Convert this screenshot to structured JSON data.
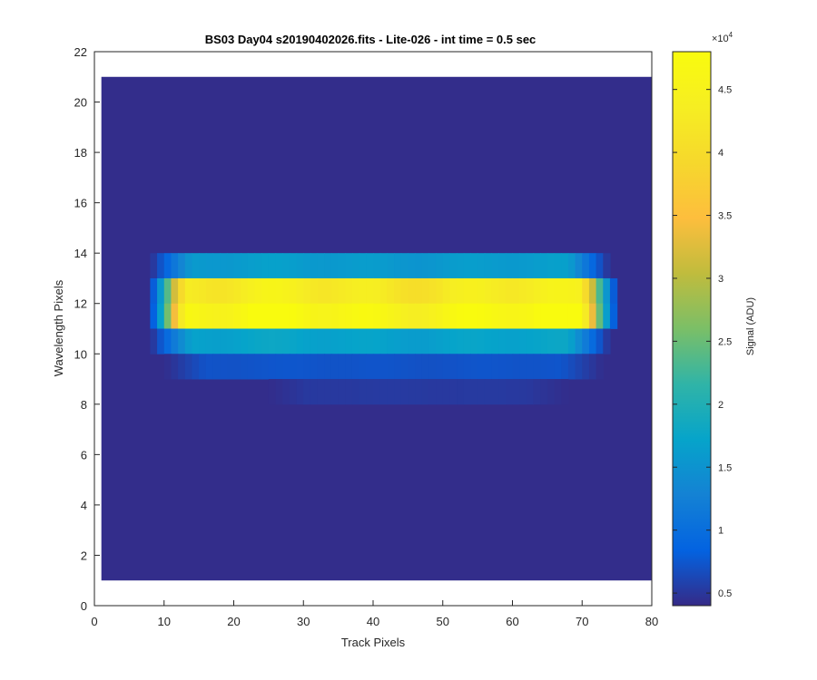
{
  "chart_data": {
    "type": "heatmap",
    "title": "BS03 Day04  s20190402026.fits - Lite-026 - int time = 0.5 sec",
    "xlabel": "Track Pixels",
    "ylabel": "Wavelength Pixels",
    "xlim": [
      0,
      80
    ],
    "ylim": [
      0,
      22
    ],
    "xticks": [
      0,
      10,
      20,
      30,
      40,
      50,
      60,
      70,
      80
    ],
    "yticks": [
      0,
      2,
      4,
      6,
      8,
      10,
      12,
      14,
      16,
      18,
      20,
      22
    ],
    "grid": false,
    "colormap": "parula",
    "colorbar": {
      "label": "Signal (ADU)",
      "exponent_label": "×10",
      "exponent": "4",
      "range": [
        0.4,
        4.8
      ],
      "ticks": [
        0.5,
        1,
        1.5,
        2,
        2.5,
        3,
        3.5,
        4,
        4.5
      ],
      "tick_labels": [
        "0.5",
        "1",
        "1.5",
        "2",
        "2.5",
        "3",
        "3.5",
        "4",
        "4.5"
      ],
      "scale": 10000
    },
    "image_extent": {
      "x": [
        1,
        80
      ],
      "y": [
        1,
        21
      ]
    },
    "background_signal": 4200,
    "bands": [
      {
        "rows": [
          13,
          14
        ],
        "x_range": [
          8,
          74
        ],
        "profile": "shoulder",
        "peak": 16000
      },
      {
        "rows": [
          12,
          13
        ],
        "x_range": [
          8,
          75
        ],
        "profile": "core",
        "peak": 43000
      },
      {
        "rows": [
          11,
          12
        ],
        "x_range": [
          8,
          75
        ],
        "profile": "core",
        "peak": 46500
      },
      {
        "rows": [
          10,
          11
        ],
        "x_range": [
          8,
          74
        ],
        "profile": "shoulder",
        "peak": 17000
      },
      {
        "rows": [
          9,
          10
        ],
        "x_range": [
          10,
          73
        ],
        "profile": "wing",
        "peak": 7200
      },
      {
        "rows": [
          8,
          9
        ],
        "x_range": [
          25,
          68
        ],
        "profile": "wing",
        "peak": 5200
      }
    ]
  }
}
